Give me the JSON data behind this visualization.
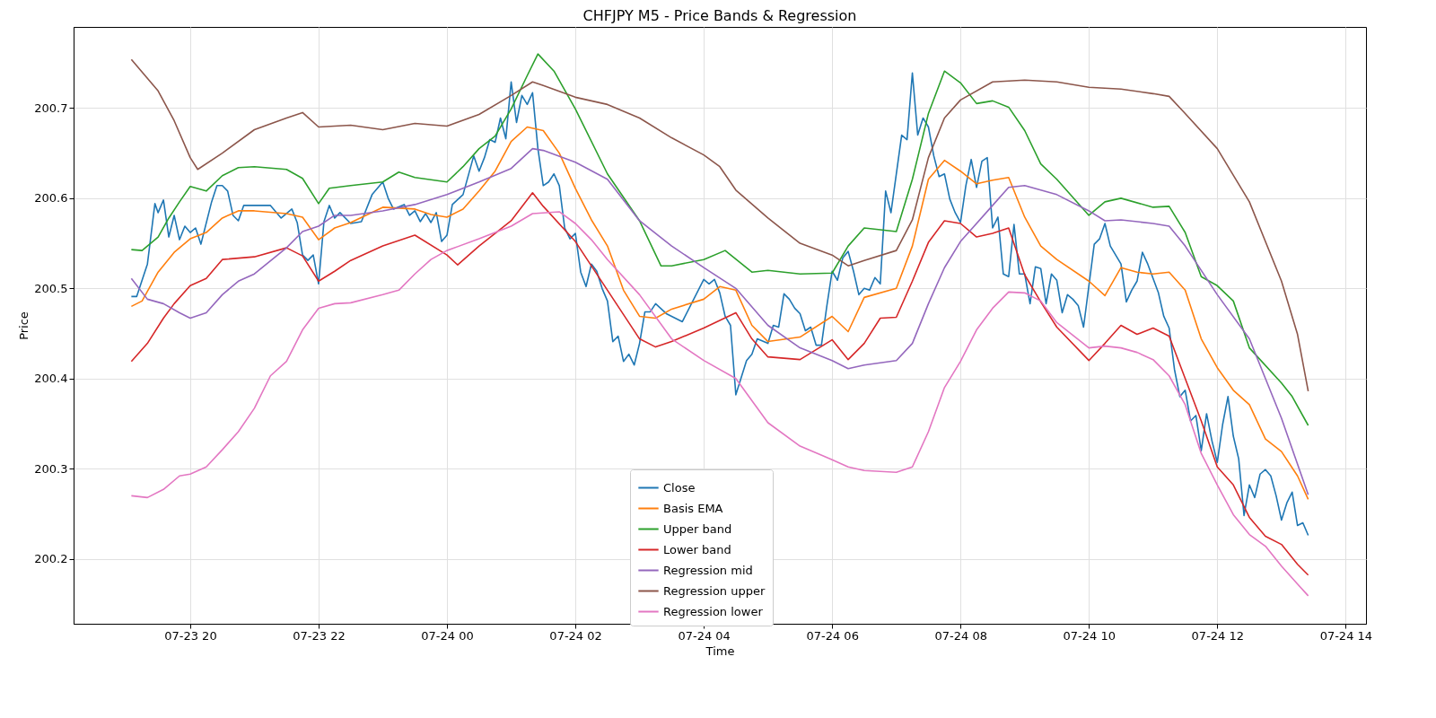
{
  "chart_data": {
    "type": "line",
    "title": "CHFJPY M5 - Price Bands & Regression",
    "xlabel": "Time",
    "ylabel": "Price",
    "xlim": [
      "--07-23T18:11",
      "--07-24T14:19"
    ],
    "xticks": [
      {
        "value": "--07-23T20:00",
        "label": "07-23 20"
      },
      {
        "value": "--07-23T22:00",
        "label": "07-23 22"
      },
      {
        "value": "--07-24T00:00",
        "label": "07-24 00"
      },
      {
        "value": "--07-24T02:00",
        "label": "07-24 02"
      },
      {
        "value": "--07-24T04:00",
        "label": "07-24 04"
      },
      {
        "value": "--07-24T06:00",
        "label": "07-24 06"
      },
      {
        "value": "--07-24T08:00",
        "label": "07-24 08"
      },
      {
        "value": "--07-24T10:00",
        "label": "07-24 10"
      },
      {
        "value": "--07-24T12:00",
        "label": "07-24 12"
      },
      {
        "value": "--07-24T14:00",
        "label": "07-24 14"
      }
    ],
    "ylim": [
      200.128,
      200.79
    ],
    "yticks": [
      200.2,
      200.3,
      200.4,
      200.5,
      200.6,
      200.7
    ],
    "grid": true,
    "legend": "bottom",
    "line_style": "solid",
    "series": [
      {
        "name": "Close",
        "color": "#1f77b4",
        "x": [
          "--07-23T19:05",
          "--07-23T19:10",
          "--07-23T19:20",
          "--07-23T19:27",
          "--07-23T19:30",
          "--07-23T19:35",
          "--07-23T19:40",
          "--07-23T19:45",
          "--07-23T19:50",
          "--07-23T19:55",
          "--07-23T20:00",
          "--07-23T20:05",
          "--07-23T20:10",
          "--07-23T20:20",
          "--07-23T20:25",
          "--07-23T20:30",
          "--07-23T20:35",
          "--07-23T20:40",
          "--07-23T20:45",
          "--07-23T20:50",
          "--07-23T21:15",
          "--07-23T21:25",
          "--07-23T21:35",
          "--07-23T21:40",
          "--07-23T21:45",
          "--07-23T21:50",
          "--07-23T21:55",
          "--07-23T22:00",
          "--07-23T22:05",
          "--07-23T22:10",
          "--07-23T22:15",
          "--07-23T22:20",
          "--07-23T22:30",
          "--07-23T22:40",
          "--07-23T22:50",
          "--07-23T23:00",
          "--07-23T23:05",
          "--07-23T23:10",
          "--07-23T23:20",
          "--07-23T23:25",
          "--07-23T23:30",
          "--07-23T23:35",
          "--07-23T23:40",
          "--07-23T23:45",
          "--07-23T23:50",
          "--07-23T23:55",
          "--07-24T00:00",
          "--07-24T00:05",
          "--07-24T00:15",
          "--07-24T00:25",
          "--07-24T00:30",
          "--07-24T00:35",
          "--07-24T00:40",
          "--07-24T00:45",
          "--07-24T00:50",
          "--07-24T00:55",
          "--07-24T01:00",
          "--07-24T01:05",
          "--07-24T01:10",
          "--07-24T01:15",
          "--07-24T01:20",
          "--07-24T01:25",
          "--07-24T01:30",
          "--07-24T01:35",
          "--07-24T01:40",
          "--07-24T01:45",
          "--07-24T01:50",
          "--07-24T01:55",
          "--07-24T02:00",
          "--07-24T02:05",
          "--07-24T02:10",
          "--07-24T02:15",
          "--07-24T02:20",
          "--07-24T02:25",
          "--07-24T02:30",
          "--07-24T02:35",
          "--07-24T02:40",
          "--07-24T02:45",
          "--07-24T02:50",
          "--07-24T02:55",
          "--07-24T03:00",
          "--07-24T03:05",
          "--07-24T03:10",
          "--07-24T03:15",
          "--07-24T03:25",
          "--07-24T03:40",
          "--07-24T04:00",
          "--07-24T04:05",
          "--07-24T04:10",
          "--07-24T04:15",
          "--07-24T04:20",
          "--07-24T04:25",
          "--07-24T04:30",
          "--07-24T04:40",
          "--07-24T04:45",
          "--07-24T04:50",
          "--07-24T05:00",
          "--07-24T05:05",
          "--07-24T05:10",
          "--07-24T05:15",
          "--07-24T05:20",
          "--07-24T05:25",
          "--07-24T05:30",
          "--07-24T05:35",
          "--07-24T05:40",
          "--07-24T05:45",
          "--07-24T05:50",
          "--07-24T05:55",
          "--07-24T06:00",
          "--07-24T06:05",
          "--07-24T06:10",
          "--07-24T06:15",
          "--07-24T06:20",
          "--07-24T06:25",
          "--07-24T06:30",
          "--07-24T06:35",
          "--07-24T06:40",
          "--07-24T06:45",
          "--07-24T06:50",
          "--07-24T06:55",
          "--07-24T07:05",
          "--07-24T07:10",
          "--07-24T07:15",
          "--07-24T07:20",
          "--07-24T07:25",
          "--07-24T07:30",
          "--07-24T07:35",
          "--07-24T07:40",
          "--07-24T07:45",
          "--07-24T07:50",
          "--07-24T07:55",
          "--07-24T08:00",
          "--07-24T08:05",
          "--07-24T08:10",
          "--07-24T08:15",
          "--07-24T08:20",
          "--07-24T08:25",
          "--07-24T08:30",
          "--07-24T08:35",
          "--07-24T08:40",
          "--07-24T08:45",
          "--07-24T08:50",
          "--07-24T08:55",
          "--07-24T09:00",
          "--07-24T09:05",
          "--07-24T09:10",
          "--07-24T09:15",
          "--07-24T09:20",
          "--07-24T09:25",
          "--07-24T09:30",
          "--07-24T09:35",
          "--07-24T09:40",
          "--07-24T09:45",
          "--07-24T09:50",
          "--07-24T09:55",
          "--07-24T10:05",
          "--07-24T10:10",
          "--07-24T10:15",
          "--07-24T10:20",
          "--07-24T10:30",
          "--07-24T10:35",
          "--07-24T10:40",
          "--07-24T10:45",
          "--07-24T10:50",
          "--07-24T10:55",
          "--07-24T11:05",
          "--07-24T11:10",
          "--07-24T11:15",
          "--07-24T11:20",
          "--07-24T11:25",
          "--07-24T11:30",
          "--07-24T11:35",
          "--07-24T11:40",
          "--07-24T11:45",
          "--07-24T11:50",
          "--07-24T11:55",
          "--07-24T12:00",
          "--07-24T12:05",
          "--07-24T12:10",
          "--07-24T12:15",
          "--07-24T12:20",
          "--07-24T12:25",
          "--07-24T12:30",
          "--07-24T12:35",
          "--07-24T12:40",
          "--07-24T12:45",
          "--07-24T12:50",
          "--07-24T12:55",
          "--07-24T13:00",
          "--07-24T13:05",
          "--07-24T13:10",
          "--07-24T13:15",
          "--07-24T13:20",
          "--07-24T13:25"
        ],
        "values": [
          200.491,
          200.491,
          200.527,
          200.594,
          200.584,
          200.598,
          200.557,
          200.581,
          200.554,
          200.569,
          200.562,
          200.567,
          200.549,
          200.596,
          200.614,
          200.614,
          200.608,
          200.581,
          200.575,
          200.592,
          200.592,
          200.578,
          200.588,
          200.573,
          200.537,
          200.531,
          200.537,
          200.505,
          200.574,
          200.592,
          200.578,
          200.584,
          200.572,
          200.574,
          200.604,
          200.618,
          200.6,
          200.588,
          200.593,
          200.581,
          200.586,
          200.574,
          200.583,
          200.573,
          200.584,
          200.552,
          200.559,
          200.593,
          200.604,
          200.647,
          200.63,
          200.645,
          200.665,
          200.662,
          200.689,
          200.666,
          200.729,
          200.684,
          200.714,
          200.704,
          200.717,
          200.655,
          200.614,
          200.618,
          200.627,
          200.614,
          200.567,
          200.555,
          200.561,
          200.518,
          200.502,
          200.527,
          200.519,
          200.5,
          200.486,
          200.441,
          200.447,
          200.419,
          200.427,
          200.415,
          200.439,
          200.474,
          200.474,
          200.483,
          200.472,
          200.463,
          200.51,
          200.505,
          200.51,
          200.495,
          200.469,
          200.459,
          200.382,
          200.42,
          200.427,
          200.444,
          200.439,
          200.459,
          200.457,
          200.494,
          200.488,
          200.478,
          200.472,
          200.453,
          200.457,
          200.437,
          200.437,
          200.48,
          200.519,
          200.509,
          200.534,
          200.541,
          200.519,
          200.493,
          200.5,
          200.498,
          200.512,
          200.505,
          200.608,
          200.584,
          200.67,
          200.665,
          200.739,
          200.67,
          200.689,
          200.679,
          200.647,
          200.624,
          200.627,
          200.599,
          200.584,
          200.573,
          200.614,
          200.643,
          200.612,
          200.641,
          200.645,
          200.567,
          200.579,
          200.516,
          200.513,
          200.571,
          200.516,
          200.516,
          200.483,
          200.524,
          200.522,
          200.483,
          200.516,
          200.509,
          200.473,
          200.493,
          200.488,
          200.481,
          200.457,
          200.549,
          200.555,
          200.572,
          200.547,
          200.527,
          200.485,
          200.498,
          200.508,
          200.54,
          200.527,
          200.495,
          200.469,
          200.456,
          200.41,
          200.38,
          200.387,
          200.353,
          200.359,
          200.32,
          200.361,
          200.331,
          200.307,
          200.349,
          200.38,
          200.336,
          200.311,
          200.248,
          200.282,
          200.268,
          200.294,
          200.299,
          200.292,
          200.27,
          200.243,
          200.262,
          200.274,
          200.237,
          200.24,
          200.226
        ]
      },
      {
        "name": "Basis EMA",
        "color": "#ff7f0e",
        "x": [
          "--07-23T19:05",
          "--07-23T19:15",
          "--07-23T19:30",
          "--07-23T19:45",
          "--07-23T20:00",
          "--07-23T20:15",
          "--07-23T20:30",
          "--07-23T20:45",
          "--07-23T21:00",
          "--07-23T21:30",
          "--07-23T21:45",
          "--07-23T22:00",
          "--07-23T22:15",
          "--07-23T22:30",
          "--07-23T23:00",
          "--07-23T23:30",
          "--07-23T23:45",
          "--07-24T00:00",
          "--07-24T00:15",
          "--07-24T00:30",
          "--07-24T00:45",
          "--07-24T01:00",
          "--07-24T01:15",
          "--07-24T01:30",
          "--07-24T01:45",
          "--07-24T02:00",
          "--07-24T02:15",
          "--07-24T02:30",
          "--07-24T02:45",
          "--07-24T03:00",
          "--07-24T03:15",
          "--07-24T03:30",
          "--07-24T04:00",
          "--07-24T04:15",
          "--07-24T04:30",
          "--07-24T04:45",
          "--07-24T05:00",
          "--07-24T05:30",
          "--07-24T06:00",
          "--07-24T06:15",
          "--07-24T06:30",
          "--07-24T07:00",
          "--07-24T07:15",
          "--07-24T07:30",
          "--07-24T07:45",
          "--07-24T08:00",
          "--07-24T08:15",
          "--07-24T08:30",
          "--07-24T08:45",
          "--07-24T09:00",
          "--07-24T09:15",
          "--07-24T09:30",
          "--07-24T10:00",
          "--07-24T10:15",
          "--07-24T10:30",
          "--07-24T10:45",
          "--07-24T11:00",
          "--07-24T11:15",
          "--07-24T11:30",
          "--07-24T11:45",
          "--07-24T12:00",
          "--07-24T12:15",
          "--07-24T12:30",
          "--07-24T12:45",
          "--07-24T13:00",
          "--07-24T13:15",
          "--07-24T13:25"
        ],
        "values": [
          200.48,
          200.486,
          200.518,
          200.54,
          200.555,
          200.562,
          200.578,
          200.586,
          200.586,
          200.583,
          200.579,
          200.554,
          200.567,
          200.573,
          200.59,
          200.588,
          200.582,
          200.579,
          200.588,
          200.608,
          200.63,
          200.663,
          200.679,
          200.675,
          200.65,
          200.611,
          200.576,
          200.547,
          200.498,
          200.469,
          200.467,
          200.477,
          200.488,
          200.502,
          200.498,
          200.459,
          200.441,
          200.446,
          200.469,
          200.452,
          200.49,
          200.5,
          200.547,
          200.621,
          200.642,
          200.63,
          200.616,
          200.62,
          200.623,
          200.579,
          200.547,
          200.532,
          200.508,
          200.492,
          200.523,
          200.518,
          200.516,
          200.518,
          200.498,
          200.444,
          200.412,
          200.387,
          200.371,
          200.333,
          200.319,
          200.292,
          200.266
        ]
      },
      {
        "name": "Upper band",
        "color": "#2ca02c",
        "x": [
          "--07-23T19:05",
          "--07-23T19:15",
          "--07-23T19:30",
          "--07-23T19:40",
          "--07-23T19:50",
          "--07-23T20:00",
          "--07-23T20:15",
          "--07-23T20:30",
          "--07-23T20:45",
          "--07-23T21:00",
          "--07-23T21:30",
          "--07-23T21:45",
          "--07-23T22:00",
          "--07-23T22:10",
          "--07-23T22:30",
          "--07-23T23:00",
          "--07-23T23:15",
          "--07-23T23:30",
          "--07-24T00:00",
          "--07-24T00:15",
          "--07-24T00:30",
          "--07-24T00:45",
          "--07-24T01:00",
          "--07-24T01:15",
          "--07-24T01:25",
          "--07-24T01:40",
          "--07-24T02:00",
          "--07-24T02:30",
          "--07-24T03:00",
          "--07-24T03:20",
          "--07-24T03:30",
          "--07-24T04:00",
          "--07-24T04:20",
          "--07-24T04:45",
          "--07-24T05:00",
          "--07-24T05:30",
          "--07-24T06:00",
          "--07-24T06:15",
          "--07-24T06:30",
          "--07-24T07:00",
          "--07-24T07:15",
          "--07-24T07:30",
          "--07-24T07:45",
          "--07-24T08:00",
          "--07-24T08:15",
          "--07-24T08:30",
          "--07-24T08:45",
          "--07-24T09:00",
          "--07-24T09:15",
          "--07-24T09:30",
          "--07-24T10:00",
          "--07-24T10:15",
          "--07-24T10:30",
          "--07-24T11:00",
          "--07-24T11:15",
          "--07-24T11:30",
          "--07-24T11:45",
          "--07-24T12:00",
          "--07-24T12:15",
          "--07-24T12:30",
          "--07-24T13:00",
          "--07-24T13:10",
          "--07-24T13:25"
        ],
        "values": [
          200.543,
          200.542,
          200.557,
          200.578,
          200.596,
          200.613,
          200.608,
          200.625,
          200.634,
          200.635,
          200.632,
          200.622,
          200.594,
          200.611,
          200.614,
          200.618,
          200.629,
          200.623,
          200.618,
          200.635,
          200.655,
          200.669,
          200.699,
          200.736,
          200.76,
          200.741,
          200.699,
          200.627,
          200.575,
          200.525,
          200.525,
          200.532,
          200.542,
          200.518,
          200.52,
          200.516,
          200.517,
          200.547,
          200.567,
          200.563,
          200.621,
          200.694,
          200.741,
          200.728,
          200.705,
          200.708,
          200.701,
          200.675,
          200.638,
          200.621,
          200.581,
          200.596,
          200.6,
          200.59,
          200.591,
          200.562,
          200.513,
          200.503,
          200.486,
          200.434,
          200.395,
          200.38,
          200.348
        ]
      },
      {
        "name": "Lower band",
        "color": "#d62728",
        "x": [
          "--07-23T19:05",
          "--07-23T19:20",
          "--07-23T19:35",
          "--07-23T19:45",
          "--07-23T20:00",
          "--07-23T20:15",
          "--07-23T20:30",
          "--07-23T21:00",
          "--07-23T21:30",
          "--07-23T21:45",
          "--07-23T22:00",
          "--07-23T22:15",
          "--07-23T22:30",
          "--07-23T23:00",
          "--07-23T23:30",
          "--07-24T00:00",
          "--07-24T00:10",
          "--07-24T00:30",
          "--07-24T01:00",
          "--07-24T01:20",
          "--07-24T01:30",
          "--07-24T02:00",
          "--07-24T02:30",
          "--07-24T03:00",
          "--07-24T03:15",
          "--07-24T03:30",
          "--07-24T04:00",
          "--07-24T04:30",
          "--07-24T04:45",
          "--07-24T05:00",
          "--07-24T05:30",
          "--07-24T06:00",
          "--07-24T06:15",
          "--07-24T06:30",
          "--07-24T06:45",
          "--07-24T07:00",
          "--07-24T07:15",
          "--07-24T07:30",
          "--07-24T07:45",
          "--07-24T08:00",
          "--07-24T08:15",
          "--07-24T08:30",
          "--07-24T08:45",
          "--07-24T09:00",
          "--07-24T09:15",
          "--07-24T09:30",
          "--07-24T10:00",
          "--07-24T10:15",
          "--07-24T10:30",
          "--07-24T10:45",
          "--07-24T11:00",
          "--07-24T11:15",
          "--07-24T11:30",
          "--07-24T11:45",
          "--07-24T12:00",
          "--07-24T12:15",
          "--07-24T12:30",
          "--07-24T12:45",
          "--07-24T13:00",
          "--07-24T13:15",
          "--07-24T13:25"
        ],
        "values": [
          200.419,
          200.439,
          200.467,
          200.483,
          200.503,
          200.511,
          200.532,
          200.535,
          200.545,
          200.536,
          200.508,
          200.519,
          200.531,
          200.547,
          200.559,
          200.537,
          200.526,
          200.547,
          200.575,
          200.606,
          200.591,
          200.552,
          200.498,
          200.444,
          200.435,
          200.441,
          200.456,
          200.473,
          200.444,
          200.424,
          200.421,
          200.443,
          200.421,
          200.439,
          200.467,
          200.468,
          200.508,
          200.551,
          200.575,
          200.572,
          200.557,
          200.561,
          200.567,
          200.515,
          200.485,
          200.457,
          200.42,
          200.439,
          200.459,
          200.449,
          200.456,
          200.447,
          200.4,
          200.353,
          200.302,
          200.282,
          200.246,
          200.225,
          200.216,
          200.194,
          200.182
        ]
      },
      {
        "name": "Regression mid",
        "color": "#9467bd",
        "x": [
          "--07-23T19:05",
          "--07-23T19:20",
          "--07-23T19:35",
          "--07-23T19:50",
          "--07-23T20:00",
          "--07-23T20:15",
          "--07-23T20:30",
          "--07-23T20:45",
          "--07-23T21:00",
          "--07-23T21:30",
          "--07-23T21:45",
          "--07-23T22:00",
          "--07-23T22:15",
          "--07-23T22:30",
          "--07-23T23:00",
          "--07-23T23:30",
          "--07-24T00:00",
          "--07-24T00:30",
          "--07-24T01:00",
          "--07-24T01:20",
          "--07-24T01:30",
          "--07-24T02:00",
          "--07-24T02:30",
          "--07-24T03:00",
          "--07-24T03:30",
          "--07-24T04:00",
          "--07-24T04:30",
          "--07-24T05:00",
          "--07-24T05:30",
          "--07-24T06:00",
          "--07-24T06:15",
          "--07-24T06:30",
          "--07-24T07:00",
          "--07-24T07:15",
          "--07-24T07:30",
          "--07-24T07:45",
          "--07-24T08:00",
          "--07-24T08:30",
          "--07-24T08:45",
          "--07-24T09:00",
          "--07-24T09:30",
          "--07-24T10:00",
          "--07-24T10:15",
          "--07-24T10:30",
          "--07-24T11:00",
          "--07-24T11:15",
          "--07-24T11:30",
          "--07-24T12:00",
          "--07-24T12:30",
          "--07-24T13:00",
          "--07-24T13:25"
        ],
        "values": [
          200.511,
          200.488,
          200.483,
          200.473,
          200.467,
          200.473,
          200.493,
          200.508,
          200.516,
          200.545,
          200.563,
          200.569,
          200.581,
          200.581,
          200.586,
          200.593,
          200.604,
          200.618,
          200.633,
          200.655,
          200.653,
          200.64,
          200.621,
          200.575,
          200.547,
          200.523,
          200.5,
          200.459,
          200.434,
          200.42,
          200.411,
          200.415,
          200.42,
          200.439,
          200.483,
          200.523,
          200.552,
          200.592,
          200.612,
          200.614,
          200.604,
          200.586,
          200.575,
          200.576,
          200.572,
          200.569,
          200.547,
          200.493,
          200.444,
          200.356,
          200.271
        ]
      },
      {
        "name": "Regression upper",
        "color": "#8c564b",
        "x": [
          "--07-23T19:05",
          "--07-23T19:30",
          "--07-23T19:45",
          "--07-23T20:00",
          "--07-23T20:07",
          "--07-23T20:30",
          "--07-23T21:00",
          "--07-23T21:30",
          "--07-23T21:45",
          "--07-23T22:00",
          "--07-23T22:30",
          "--07-23T23:00",
          "--07-23T23:30",
          "--07-24T00:00",
          "--07-24T00:30",
          "--07-24T01:00",
          "--07-24T01:20",
          "--07-24T01:30",
          "--07-24T02:00",
          "--07-24T02:30",
          "--07-24T03:00",
          "--07-24T03:30",
          "--07-24T04:00",
          "--07-24T04:15",
          "--07-24T04:30",
          "--07-24T05:00",
          "--07-24T05:30",
          "--07-24T06:00",
          "--07-24T06:15",
          "--07-24T06:30",
          "--07-24T07:00",
          "--07-24T07:15",
          "--07-24T07:30",
          "--07-24T07:45",
          "--07-24T08:00",
          "--07-24T08:30",
          "--07-24T09:00",
          "--07-24T09:30",
          "--07-24T10:00",
          "--07-24T10:30",
          "--07-24T11:00",
          "--07-24T11:15",
          "--07-24T11:30",
          "--07-24T12:00",
          "--07-24T12:30",
          "--07-24T13:00",
          "--07-24T13:15",
          "--07-24T13:25"
        ],
        "values": [
          200.754,
          200.719,
          200.686,
          200.645,
          200.632,
          200.65,
          200.676,
          200.689,
          200.695,
          200.679,
          200.681,
          200.676,
          200.683,
          200.68,
          200.693,
          200.714,
          200.729,
          200.725,
          200.712,
          200.704,
          200.689,
          200.667,
          200.648,
          200.635,
          200.609,
          200.578,
          200.55,
          200.537,
          200.525,
          200.531,
          200.542,
          200.576,
          200.645,
          200.689,
          200.709,
          200.729,
          200.731,
          200.729,
          200.723,
          200.721,
          200.716,
          200.713,
          200.694,
          200.655,
          200.596,
          200.508,
          200.449,
          200.386
        ]
      },
      {
        "name": "Regression lower",
        "color": "#e377c2",
        "x": [
          "--07-23T19:05",
          "--07-23T19:20",
          "--07-23T19:35",
          "--07-23T19:50",
          "--07-23T20:00",
          "--07-23T20:15",
          "--07-23T20:30",
          "--07-23T20:45",
          "--07-23T21:00",
          "--07-23T21:15",
          "--07-23T21:30",
          "--07-23T21:45",
          "--07-23T22:00",
          "--07-23T22:15",
          "--07-23T22:30",
          "--07-23T23:00",
          "--07-23T23:15",
          "--07-23T23:30",
          "--07-23T23:45",
          "--07-24T00:00",
          "--07-24T00:30",
          "--07-24T01:00",
          "--07-24T01:20",
          "--07-24T01:45",
          "--07-24T02:00",
          "--07-24T02:15",
          "--07-24T02:30",
          "--07-24T03:00",
          "--07-24T03:30",
          "--07-24T04:00",
          "--07-24T04:30",
          "--07-24T05:00",
          "--07-24T05:30",
          "--07-24T06:00",
          "--07-24T06:15",
          "--07-24T06:30",
          "--07-24T07:00",
          "--07-24T07:15",
          "--07-24T07:30",
          "--07-24T07:45",
          "--07-24T08:00",
          "--07-24T08:15",
          "--07-24T08:30",
          "--07-24T08:45",
          "--07-24T09:00",
          "--07-24T09:15",
          "--07-24T09:30",
          "--07-24T10:00",
          "--07-24T10:15",
          "--07-24T10:30",
          "--07-24T10:45",
          "--07-24T11:00",
          "--07-24T11:15",
          "--07-24T11:30",
          "--07-24T11:45",
          "--07-24T12:00",
          "--07-24T12:15",
          "--07-24T12:30",
          "--07-24T12:45",
          "--07-24T13:00",
          "--07-24T13:15",
          "--07-24T13:25"
        ],
        "values": [
          200.27,
          200.268,
          200.277,
          200.292,
          200.294,
          200.302,
          200.321,
          200.341,
          200.367,
          200.403,
          200.419,
          200.454,
          200.478,
          200.483,
          200.484,
          200.493,
          200.498,
          200.516,
          200.532,
          200.542,
          200.555,
          200.569,
          200.583,
          200.585,
          200.572,
          200.554,
          200.532,
          200.493,
          200.444,
          200.42,
          200.4,
          200.351,
          200.325,
          200.31,
          200.302,
          200.298,
          200.296,
          200.302,
          200.341,
          200.39,
          200.419,
          200.454,
          200.478,
          200.496,
          200.495,
          200.486,
          200.462,
          200.434,
          200.436,
          200.434,
          200.429,
          200.421,
          200.403,
          200.371,
          200.317,
          200.282,
          200.249,
          200.227,
          200.214,
          200.192,
          200.172,
          200.159
        ]
      }
    ]
  }
}
